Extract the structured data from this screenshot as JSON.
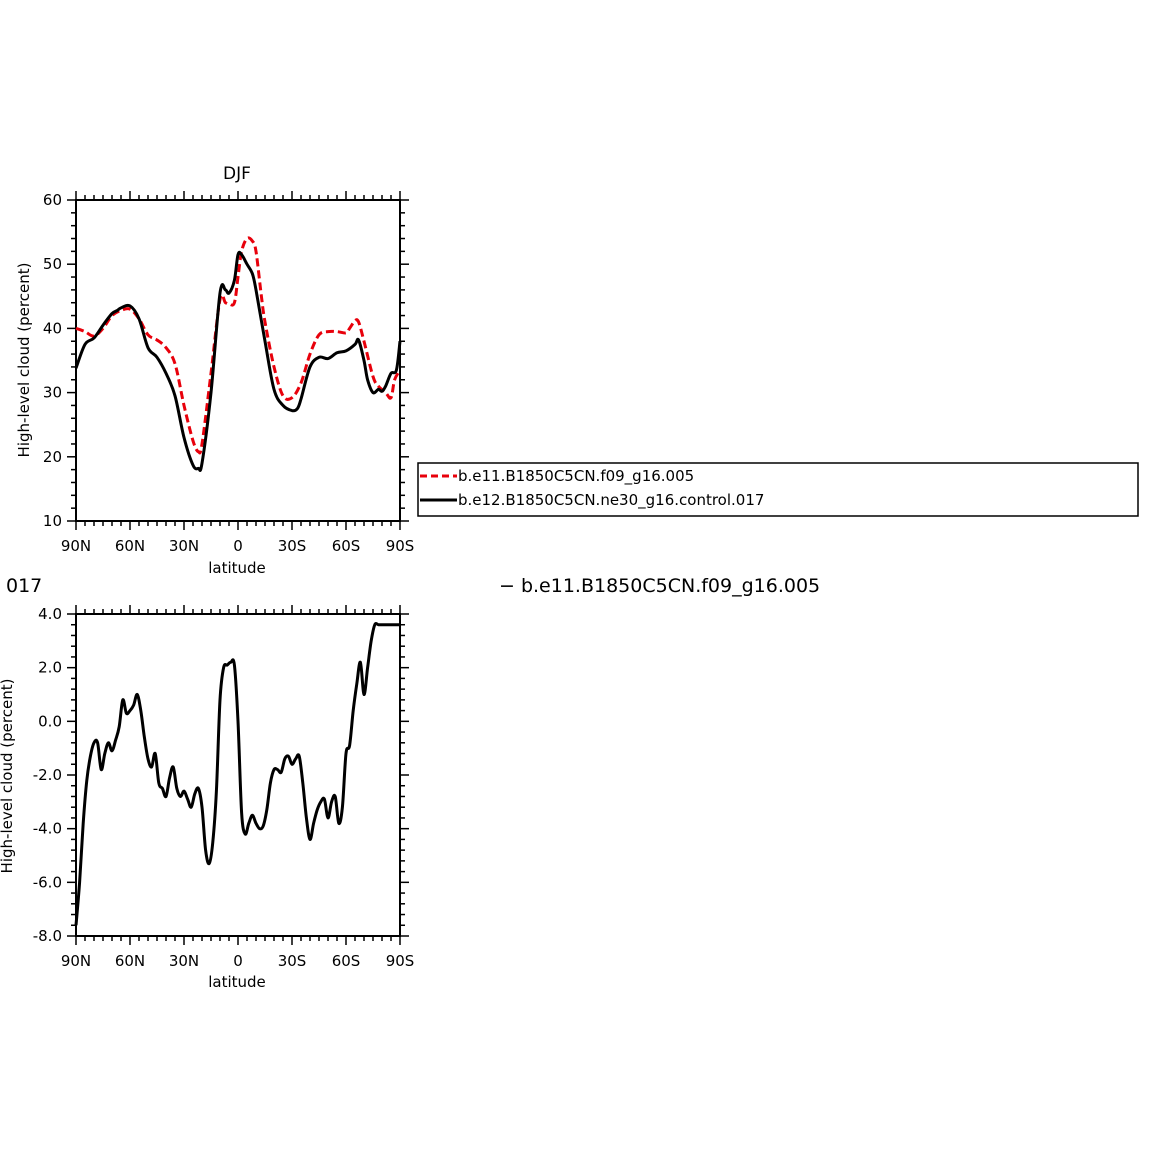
{
  "chart_data": [
    {
      "type": "line",
      "title": "DJF",
      "xlabel": "latitude",
      "ylabel": "High-level cloud (percent)",
      "xlim": [
        90,
        -90
      ],
      "ylim": [
        10,
        60
      ],
      "xticks": [
        90,
        60,
        30,
        0,
        -30,
        -60,
        -90
      ],
      "xticklabels": [
        "90N",
        "60N",
        "30N",
        "0",
        "30S",
        "60S",
        "90S"
      ],
      "yticks": [
        10,
        20,
        30,
        40,
        50,
        60
      ],
      "yticklabels": [
        "10",
        "20",
        "30",
        "40",
        "50",
        "60"
      ],
      "legend": "right",
      "series": [
        {
          "name": "b.e11.B1850C5CN.f09_g16.005",
          "color": "#e8000b",
          "style": "dashed",
          "x": [
            90,
            85,
            80,
            75,
            70,
            65,
            60,
            55,
            50,
            45,
            40,
            35,
            30,
            25,
            22,
            20,
            15,
            10,
            7,
            5,
            2,
            0,
            -2,
            -5,
            -8,
            -10,
            -13,
            -15,
            -20,
            -25,
            -30,
            -35,
            -40,
            -45,
            -50,
            -55,
            -60,
            -62,
            -65,
            -67,
            -70,
            -75,
            -78,
            -82,
            -85,
            -87,
            -90
          ],
          "values": [
            40,
            39.5,
            38.8,
            40,
            42,
            42.8,
            43,
            41.5,
            39,
            38.2,
            37,
            34.5,
            28,
            22.5,
            20.8,
            22,
            33,
            44.5,
            44,
            43.8,
            44,
            48,
            52,
            54,
            53.6,
            52,
            45,
            41,
            34,
            29.5,
            29.2,
            31.5,
            36,
            39,
            39.5,
            39.5,
            39.3,
            40,
            41.2,
            41,
            38,
            32.5,
            31,
            30,
            29.2,
            32,
            33.5
          ]
        },
        {
          "name": "b.e12.B1850C5CN.ne30_g16.control.017",
          "color": "#000000",
          "style": "solid",
          "x": [
            90,
            85,
            80,
            75,
            70,
            67,
            65,
            60,
            55,
            50,
            45,
            40,
            35,
            30,
            25,
            22,
            20,
            15,
            10,
            7,
            5,
            2,
            0,
            -2,
            -5,
            -8,
            -10,
            -15,
            -20,
            -25,
            -30,
            -33,
            -35,
            -40,
            -45,
            -50,
            -55,
            -60,
            -65,
            -67,
            -70,
            -72,
            -75,
            -78,
            -80,
            -82,
            -85,
            -88,
            -90
          ],
          "values": [
            33.8,
            37.5,
            38.5,
            40.5,
            42.3,
            42.8,
            43.2,
            43.5,
            41.5,
            37,
            35.5,
            33,
            29.5,
            23,
            18.7,
            18.2,
            19,
            30,
            45.5,
            46,
            45.5,
            47.5,
            51.5,
            51.5,
            50,
            48.5,
            46,
            38,
            30.5,
            28,
            27.2,
            27.5,
            29,
            34,
            35.5,
            35.3,
            36.2,
            36.5,
            37.5,
            38.2,
            35,
            32,
            30,
            30.5,
            30.2,
            31,
            33,
            33.5,
            38
          ]
        }
      ]
    },
    {
      "type": "line",
      "title": "",
      "xlabel": "latitude",
      "ylabel": "High-level cloud (percent)",
      "xlim": [
        90,
        -90
      ],
      "ylim": [
        -8,
        4
      ],
      "xticks": [
        90,
        60,
        30,
        0,
        -30,
        -60,
        -90
      ],
      "xticklabels": [
        "90N",
        "60N",
        "30N",
        "0",
        "30S",
        "60S",
        "90S"
      ],
      "yticks": [
        -8,
        -6,
        -4,
        -2,
        0,
        2,
        4
      ],
      "yticklabels": [
        "-8.0",
        "-6.0",
        "-4.0",
        "-2.0",
        "0.0",
        "2.0",
        "4.0"
      ],
      "header_left": "017",
      "header_right": "− b.e11.B1850C5CN.f09_g16.005",
      "series": [
        {
          "name": "",
          "color": "#000000",
          "style": "solid",
          "x": [
            90,
            88,
            86,
            84,
            82,
            80,
            78,
            76,
            74,
            72,
            70,
            68,
            66,
            64,
            62,
            60,
            58,
            56,
            54,
            52,
            50,
            48,
            46,
            44,
            42,
            40,
            38,
            36,
            34,
            32,
            30,
            28,
            26,
            24,
            22,
            20,
            18,
            16,
            14,
            12,
            10,
            8,
            6,
            4,
            2,
            0,
            -2,
            -4,
            -6,
            -8,
            -10,
            -12,
            -14,
            -16,
            -18,
            -20,
            -22,
            -24,
            -26,
            -28,
            -30,
            -32,
            -34,
            -36,
            -38,
            -40,
            -42,
            -44,
            -46,
            -48,
            -50,
            -52,
            -54,
            -56,
            -58,
            -60,
            -62,
            -64,
            -66,
            -68,
            -70,
            -72,
            -74,
            -76,
            -78,
            -80,
            -82,
            -84,
            -85,
            -86,
            -88,
            -90
          ],
          "values": [
            -7.6,
            -6.0,
            -3.8,
            -2.2,
            -1.3,
            -0.8,
            -0.8,
            -1.8,
            -1.2,
            -0.8,
            -1.1,
            -0.7,
            -0.2,
            0.8,
            0.3,
            0.4,
            0.6,
            1.0,
            0.4,
            -0.6,
            -1.4,
            -1.7,
            -1.2,
            -2.3,
            -2.5,
            -2.8,
            -2.1,
            -1.7,
            -2.5,
            -2.8,
            -2.6,
            -2.9,
            -3.2,
            -2.7,
            -2.5,
            -3.2,
            -4.8,
            -5.3,
            -4.5,
            -2.6,
            0.8,
            2.0,
            2.1,
            2.2,
            2.1,
            0.0,
            -3.4,
            -4.2,
            -3.8,
            -3.5,
            -3.8,
            -4.0,
            -3.9,
            -3.3,
            -2.3,
            -1.8,
            -1.8,
            -1.9,
            -1.4,
            -1.3,
            -1.6,
            -1.4,
            -1.3,
            -2.3,
            -3.6,
            -4.4,
            -3.8,
            -3.3,
            -3.0,
            -2.9,
            -3.6,
            -3.0,
            -2.8,
            -3.8,
            -3.2,
            -1.2,
            -0.9,
            0.4,
            1.4,
            2.2,
            1.0,
            2.0,
            3.0,
            3.6,
            3.6,
            3.6,
            3.6,
            3.6,
            3.6,
            3.6,
            3.6,
            3.6
          ]
        }
      ]
    }
  ]
}
